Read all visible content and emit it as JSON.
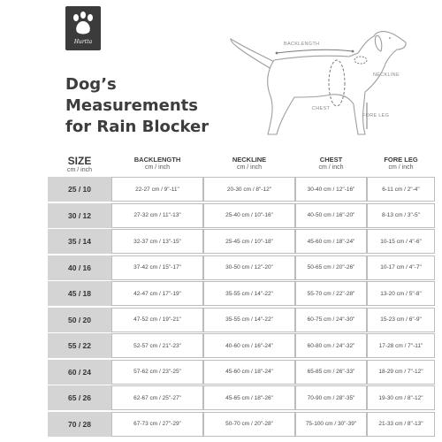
{
  "brand": {
    "name": "Hurtta"
  },
  "title": {
    "line1": "Dog’s Measurements",
    "line2": "for Rain Blocker"
  },
  "diagram": {
    "labels": {
      "backlength": "BACKLENGTH",
      "neckline": "NECKLINE",
      "chest": "CHEST",
      "foreleg": "FORE LEG"
    }
  },
  "table": {
    "headers": [
      {
        "label": "SIZE",
        "unit": "cm / inch"
      },
      {
        "label": "BACKLENGTH",
        "unit": "cm / inch"
      },
      {
        "label": "NECKLINE",
        "unit": "cm / inch"
      },
      {
        "label": "CHEST",
        "unit": "cm / inch"
      },
      {
        "label": "FORE LEG",
        "unit": "cm / inch"
      }
    ],
    "rows": [
      {
        "size": "25 / 10",
        "backlength": "22-27 cm / 9\"-11\"",
        "neckline": "20-30 cm / 8\"-12\"",
        "chest": "30-40 cm / 12\"-16\"",
        "foreleg": "6-11 cm / 2\"-4\""
      },
      {
        "size": "30 / 12",
        "backlength": "27-32 cm / 11\"-13\"",
        "neckline": "25-40 cm / 10\"-16\"",
        "chest": "40-50 cm / 16\"-20\"",
        "foreleg": "8-13 cm / 3\"-5\""
      },
      {
        "size": "35 / 14",
        "backlength": "32-37 cm / 13\"-15\"",
        "neckline": "25-45 cm / 10\"-18\"",
        "chest": "45-60 cm / 18\"-24\"",
        "foreleg": "10-15 cm / 4\"-6\""
      },
      {
        "size": "40 / 16",
        "backlength": "37-42 cm / 15\"-17\"",
        "neckline": "30-50 cm / 12\"-20\"",
        "chest": "50-65 cm / 20\"-26\"",
        "foreleg": "10-17 cm / 4\"-7\""
      },
      {
        "size": "45 / 18",
        "backlength": "42-47 cm / 17\"-19\"",
        "neckline": "35-55 cm / 14\"-22\"",
        "chest": "55-70 cm / 22\"-28\"",
        "foreleg": "13-20 cm / 5\"-8\""
      },
      {
        "size": "50 / 20",
        "backlength": "47-52 cm / 19\"-21\"",
        "neckline": "35-55 cm / 14\"-22\"",
        "chest": "60-75 cm / 24\"-30\"",
        "foreleg": "15-23 cm / 6\"-9\""
      },
      {
        "size": "55 / 22",
        "backlength": "52-57 cm / 21\"-23\"",
        "neckline": "40-60 cm / 16\"-24\"",
        "chest": "60-80 cm / 24\"-32\"",
        "foreleg": "17-28 cm / 7\"-11\""
      },
      {
        "size": "60 / 24",
        "backlength": "57-62 cm / 23\"-25\"",
        "neckline": "45-60 cm / 18\"-24\"",
        "chest": "65-85 cm / 26\"-33\"",
        "foreleg": "18-29 cm / 7\"-12\""
      },
      {
        "size": "65 / 26",
        "backlength": "62-67 cm / 25\"-27\"",
        "neckline": "45-65 cm / 18\"-26\"",
        "chest": "70-90 cm / 28\"-35\"",
        "foreleg": "19-30 cm / 8\"-12\""
      },
      {
        "size": "70 / 28",
        "backlength": "67-73 cm / 27\"-29\"",
        "neckline": "50-70 cm / 20\"-28\"",
        "chest": "75-100 cm / 30\"-39\"",
        "foreleg": "21-33 cm / 8\"-13\""
      }
    ]
  }
}
